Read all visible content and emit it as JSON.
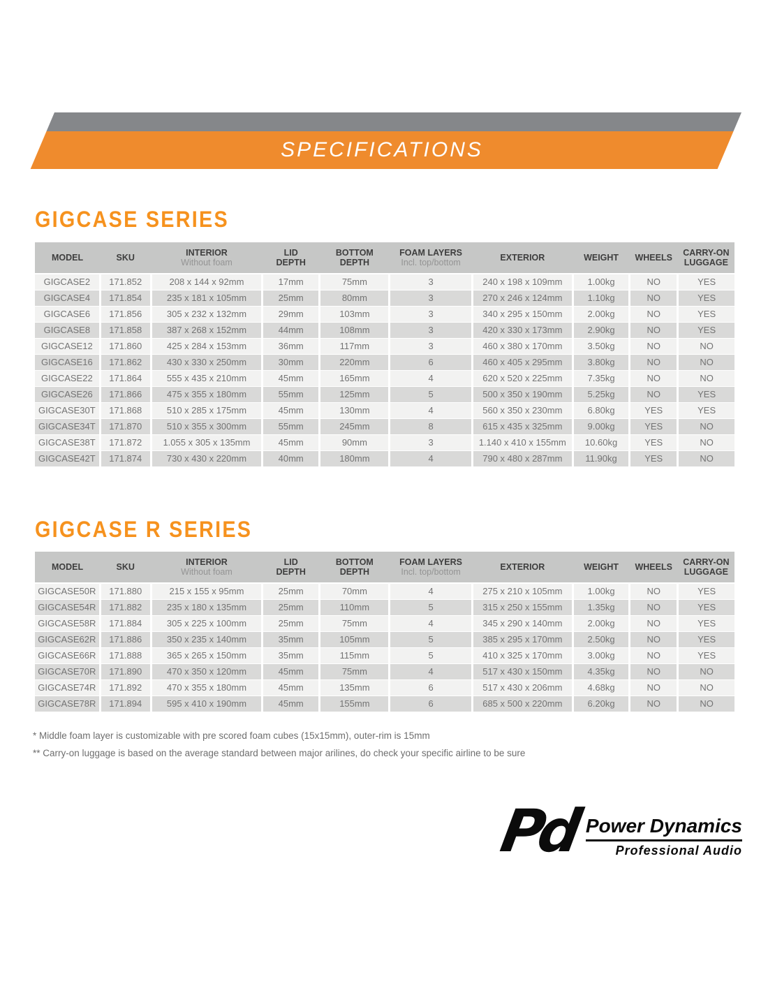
{
  "banner": {
    "title": "SPECIFICATIONS"
  },
  "columns": [
    {
      "label": "MODEL",
      "sub": ""
    },
    {
      "label": "SKU",
      "sub": ""
    },
    {
      "label": "INTERIOR",
      "sub": "Without foam"
    },
    {
      "label": "LID\nDEPTH",
      "sub": ""
    },
    {
      "label": "BOTTOM\nDEPTH",
      "sub": ""
    },
    {
      "label": "FOAM LAYERS",
      "sub": "Incl. top/bottom"
    },
    {
      "label": "EXTERIOR",
      "sub": ""
    },
    {
      "label": "WEIGHT",
      "sub": ""
    },
    {
      "label": "WHEELS",
      "sub": ""
    },
    {
      "label": "CARRY-ON\nLUGGAGE",
      "sub": ""
    }
  ],
  "sections": [
    {
      "title": "GIGCASE SERIES",
      "rows": [
        [
          "GIGCASE2",
          "171.852",
          "208 x 144 x 92mm",
          "17mm",
          "75mm",
          "3",
          "240 x 198 x 109mm",
          "1.00kg",
          "NO",
          "YES"
        ],
        [
          "GIGCASE4",
          "171.854",
          "235 x 181 x 105mm",
          "25mm",
          "80mm",
          "3",
          "270 x 246 x 124mm",
          "1.10kg",
          "NO",
          "YES"
        ],
        [
          "GIGCASE6",
          "171.856",
          "305 x 232 x 132mm",
          "29mm",
          "103mm",
          "3",
          "340 x 295 x 150mm",
          "2.00kg",
          "NO",
          "YES"
        ],
        [
          "GIGCASE8",
          "171.858",
          "387 x 268 x 152mm",
          "44mm",
          "108mm",
          "3",
          "420 x 330 x 173mm",
          "2.90kg",
          "NO",
          "YES"
        ],
        [
          "GIGCASE12",
          "171.860",
          "425 x 284 x 153mm",
          "36mm",
          "117mm",
          "3",
          "460 x 380 x 170mm",
          "3.50kg",
          "NO",
          "NO"
        ],
        [
          "GIGCASE16",
          "171.862",
          "430 x 330 x 250mm",
          "30mm",
          "220mm",
          "6",
          "460 x 405 x 295mm",
          "3.80kg",
          "NO",
          "NO"
        ],
        [
          "GIGCASE22",
          "171.864",
          "555 x 435 x 210mm",
          "45mm",
          "165mm",
          "4",
          "620 x 520 x 225mm",
          "7.35kg",
          "NO",
          "NO"
        ],
        [
          "GIGCASE26",
          "171.866",
          "475 x 355 x 180mm",
          "55mm",
          "125mm",
          "5",
          "500 x 350 x 190mm",
          "5.25kg",
          "NO",
          "YES"
        ],
        [
          "GIGCASE30T",
          "171.868",
          "510 x 285 x 175mm",
          "45mm",
          "130mm",
          "4",
          "560 x 350 x 230mm",
          "6.80kg",
          "YES",
          "YES"
        ],
        [
          "GIGCASE34T",
          "171.870",
          "510 x 355 x 300mm",
          "55mm",
          "245mm",
          "8",
          "615 x 435 x 325mm",
          "9.00kg",
          "YES",
          "NO"
        ],
        [
          "GIGCASE38T",
          "171.872",
          "1.055 x 305 x 135mm",
          "45mm",
          "90mm",
          "3",
          "1.140 x 410 x 155mm",
          "10.60kg",
          "YES",
          "NO"
        ],
        [
          "GIGCASE42T",
          "171.874",
          "730 x 430 x 220mm",
          "40mm",
          "180mm",
          "4",
          "790 x 480 x 287mm",
          "11.90kg",
          "YES",
          "NO"
        ]
      ]
    },
    {
      "title": "GIGCASE R SERIES",
      "rows": [
        [
          "GIGCASE50R",
          "171.880",
          "215 x 155 x 95mm",
          "25mm",
          "70mm",
          "4",
          "275 x 210 x 105mm",
          "1.00kg",
          "NO",
          "YES"
        ],
        [
          "GIGCASE54R",
          "171.882",
          "235 x 180 x 135mm",
          "25mm",
          "110mm",
          "5",
          "315 x 250 x 155mm",
          "1.35kg",
          "NO",
          "YES"
        ],
        [
          "GIGCASE58R",
          "171.884",
          "305 x 225 x 100mm",
          "25mm",
          "75mm",
          "4",
          "345 x 290 x 140mm",
          "2.00kg",
          "NO",
          "YES"
        ],
        [
          "GIGCASE62R",
          "171.886",
          "350 x 235 x 140mm",
          "35mm",
          "105mm",
          "5",
          "385 x 295 x 170mm",
          "2.50kg",
          "NO",
          "YES"
        ],
        [
          "GIGCASE66R",
          "171.888",
          "365 x 265 x 150mm",
          "35mm",
          "115mm",
          "5",
          "410 x 325 x 170mm",
          "3.00kg",
          "NO",
          "YES"
        ],
        [
          "GIGCASE70R",
          "171.890",
          "470 x 350 x 120mm",
          "45mm",
          "75mm",
          "4",
          "517 x 430 x 150mm",
          "4.35kg",
          "NO",
          "NO"
        ],
        [
          "GIGCASE74R",
          "171.892",
          "470 x 355 x 180mm",
          "45mm",
          "135mm",
          "6",
          "517 x 430 x 206mm",
          "4.68kg",
          "NO",
          "NO"
        ],
        [
          "GIGCASE78R",
          "171.894",
          "595 x 410 x 190mm",
          "45mm",
          "155mm",
          "6",
          "685 x 500 x 220mm",
          "6.20kg",
          "NO",
          "NO"
        ]
      ]
    }
  ],
  "footnotes": [
    "* Middle foam layer is customizable with pre scored foam cubes (15x15mm), outer-rim is 15mm",
    "** Carry-on luggage is based on the average standard between major arilines, do check your specific airline to be sure"
  ],
  "logo": {
    "monogram": "Pd",
    "name": "Power Dynamics",
    "tagline": "Professional Audio"
  },
  "colors": {
    "banner_orange": "#EF8B2D",
    "banner_gray": "#85878A",
    "title_orange": "#F6921E",
    "header_bg": "#C6C7C6",
    "header_text": "#3E3E3E",
    "header_sub": "#949494",
    "row_light": "#F2F2F1",
    "row_dark": "#D9D9D8",
    "cell_text": "#737373",
    "footnote_text": "#6E6E6E",
    "logo_black": "#0B0B0B"
  }
}
